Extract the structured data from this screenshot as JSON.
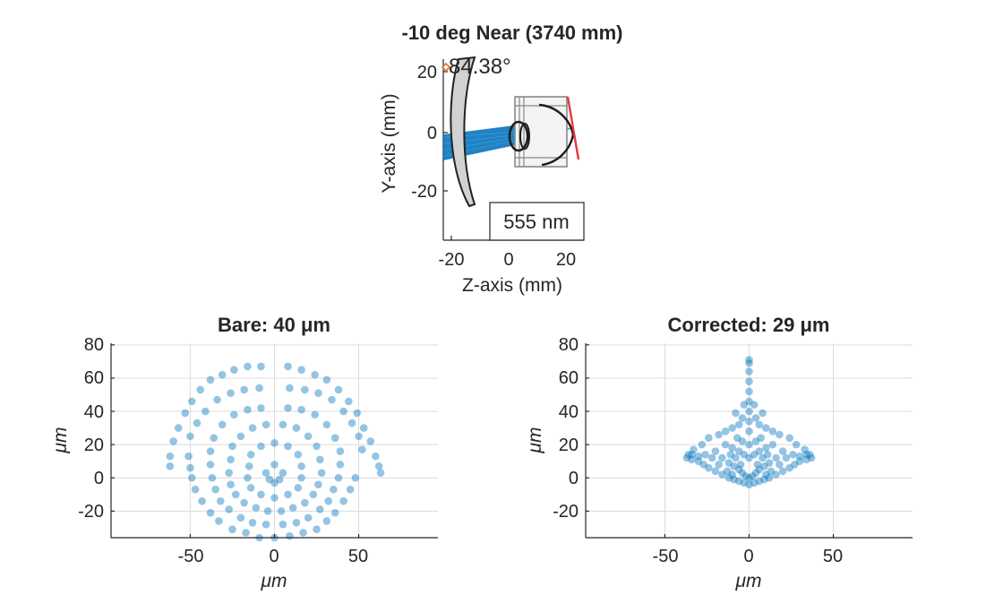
{
  "chart_data": [
    {
      "type": "diagram",
      "title": "-10 deg Near (3740 mm)",
      "xlabel": "Z-axis (mm)",
      "ylabel": "Y-axis (mm)",
      "xlim": [
        -22,
        26
      ],
      "ylim": [
        -36,
        30
      ],
      "xticks": [
        "-20",
        "0",
        "20"
      ],
      "yticks": [
        "20",
        "0",
        "-20"
      ],
      "angle_annotation": "84.38°",
      "wavelength_label": "555 nm",
      "ray_color": "#0072BD",
      "sensor_color": "#e8383d",
      "marker_color": "#e07b39"
    },
    {
      "type": "scatter",
      "title": "Bare: 40 μm",
      "xlabel": "μm",
      "ylabel": "μm",
      "xlim": [
        -97,
        97
      ],
      "ylim": [
        -36,
        81
      ],
      "xticks": [
        "-50",
        "0",
        "50"
      ],
      "yticks": [
        "80",
        "60",
        "40",
        "20",
        "0",
        "-20"
      ],
      "grid": true,
      "point_color": "#0072BD",
      "points": [
        [
          -62,
          13
        ],
        [
          -62,
          7
        ],
        [
          -60,
          22
        ],
        [
          -57,
          30
        ],
        [
          -53,
          39
        ],
        [
          -49,
          46
        ],
        [
          -44,
          53
        ],
        [
          -38,
          59
        ],
        [
          -31,
          62
        ],
        [
          -24,
          65
        ],
        [
          -16,
          67
        ],
        [
          -8,
          67
        ],
        [
          8,
          67
        ],
        [
          16,
          65
        ],
        [
          24,
          62
        ],
        [
          31,
          59
        ],
        [
          38,
          53
        ],
        [
          44,
          46
        ],
        [
          49,
          39
        ],
        [
          53,
          30
        ],
        [
          57,
          22
        ],
        [
          60,
          13
        ],
        [
          62,
          7
        ],
        [
          63,
          3
        ],
        [
          -50,
          25
        ],
        [
          -46,
          33
        ],
        [
          -41,
          40
        ],
        [
          -34,
          47
        ],
        [
          -26,
          51
        ],
        [
          -18,
          53
        ],
        [
          -9,
          54
        ],
        [
          9,
          54
        ],
        [
          18,
          53
        ],
        [
          26,
          51
        ],
        [
          34,
          47
        ],
        [
          41,
          40
        ],
        [
          46,
          33
        ],
        [
          50,
          25
        ],
        [
          52,
          17
        ],
        [
          -51,
          13
        ],
        [
          -50,
          6
        ],
        [
          -49,
          0
        ],
        [
          -47,
          -7
        ],
        [
          -43,
          -14
        ],
        [
          -38,
          -21
        ],
        [
          -33,
          -26
        ],
        [
          -25,
          -31
        ],
        [
          -17,
          -33
        ],
        [
          -9,
          -36
        ],
        [
          0,
          -36
        ],
        [
          9,
          -35
        ],
        [
          17,
          -33
        ],
        [
          25,
          -31
        ],
        [
          31,
          -26
        ],
        [
          36,
          -21
        ],
        [
          41,
          -14
        ],
        [
          45,
          -7
        ],
        [
          48,
          0
        ],
        [
          -38,
          16
        ],
        [
          -36,
          24
        ],
        [
          -31,
          32
        ],
        [
          -24,
          38
        ],
        [
          -16,
          41
        ],
        [
          -8,
          42
        ],
        [
          8,
          42
        ],
        [
          16,
          41
        ],
        [
          24,
          38
        ],
        [
          31,
          32
        ],
        [
          36,
          24
        ],
        [
          39,
          16
        ],
        [
          -38,
          8
        ],
        [
          -37,
          0
        ],
        [
          -35,
          -7
        ],
        [
          -32,
          -14
        ],
        [
          -27,
          -19
        ],
        [
          -20,
          -24
        ],
        [
          -13,
          -27
        ],
        [
          -5,
          -28
        ],
        [
          5,
          -28
        ],
        [
          13,
          -27
        ],
        [
          20,
          -24
        ],
        [
          27,
          -19
        ],
        [
          32,
          -14
        ],
        [
          35,
          -7
        ],
        [
          38,
          0
        ],
        [
          39,
          8
        ],
        [
          -26,
          11
        ],
        [
          -25,
          19
        ],
        [
          -20,
          25
        ],
        [
          -13,
          30
        ],
        [
          -5,
          32
        ],
        [
          5,
          32
        ],
        [
          13,
          30
        ],
        [
          20,
          25
        ],
        [
          25,
          19
        ],
        [
          27,
          11
        ],
        [
          -27,
          3
        ],
        [
          -26,
          -4
        ],
        [
          -23,
          -10
        ],
        [
          -18,
          -15
        ],
        [
          -11,
          -18
        ],
        [
          -4,
          -20
        ],
        [
          4,
          -20
        ],
        [
          11,
          -18
        ],
        [
          18,
          -15
        ],
        [
          23,
          -10
        ],
        [
          26,
          -4
        ],
        [
          28,
          3
        ],
        [
          -15,
          7
        ],
        [
          -14,
          14
        ],
        [
          -8,
          19
        ],
        [
          0,
          21
        ],
        [
          8,
          19
        ],
        [
          14,
          14
        ],
        [
          16,
          7
        ],
        [
          -16,
          0
        ],
        [
          -14,
          -6
        ],
        [
          -8,
          -10
        ],
        [
          0,
          -12
        ],
        [
          8,
          -10
        ],
        [
          14,
          -6
        ],
        [
          16,
          0
        ],
        [
          -5,
          3
        ],
        [
          0,
          8
        ],
        [
          5,
          3
        ],
        [
          0,
          -3
        ],
        [
          -3,
          -1
        ],
        [
          3,
          -1
        ]
      ]
    },
    {
      "type": "scatter",
      "title": "Corrected: 29 μm",
      "xlabel": "μm",
      "ylabel": "μm",
      "xlim": [
        -97,
        97
      ],
      "ylim": [
        -36,
        81
      ],
      "xticks": [
        "-50",
        "0",
        "50"
      ],
      "yticks": [
        "80",
        "60",
        "40",
        "20",
        "0",
        "-20"
      ],
      "grid": true,
      "point_color": "#0072BD",
      "points": [
        [
          0,
          71
        ],
        [
          0,
          69
        ],
        [
          0,
          64
        ],
        [
          0,
          58
        ],
        [
          0,
          52
        ],
        [
          0,
          46
        ],
        [
          0,
          40
        ],
        [
          -3,
          44
        ],
        [
          3,
          44
        ],
        [
          0,
          34
        ],
        [
          -4,
          36
        ],
        [
          4,
          36
        ],
        [
          -8,
          39
        ],
        [
          8,
          39
        ],
        [
          -6,
          32
        ],
        [
          6,
          32
        ],
        [
          -10,
          30
        ],
        [
          10,
          30
        ],
        [
          -14,
          28
        ],
        [
          14,
          28
        ],
        [
          -18,
          26
        ],
        [
          18,
          26
        ],
        [
          -24,
          24
        ],
        [
          24,
          24
        ],
        [
          -28,
          20
        ],
        [
          28,
          20
        ],
        [
          -33,
          17
        ],
        [
          33,
          17
        ],
        [
          -36,
          14
        ],
        [
          36,
          14
        ],
        [
          -37,
          12
        ],
        [
          37,
          12
        ],
        [
          -34,
          11
        ],
        [
          34,
          11
        ],
        [
          -30,
          10
        ],
        [
          30,
          10
        ],
        [
          -27,
          8
        ],
        [
          27,
          8
        ],
        [
          -24,
          6
        ],
        [
          24,
          6
        ],
        [
          -20,
          4
        ],
        [
          20,
          4
        ],
        [
          -16,
          2
        ],
        [
          16,
          2
        ],
        [
          -12,
          0
        ],
        [
          12,
          0
        ],
        [
          -9,
          -1
        ],
        [
          9,
          -1
        ],
        [
          -6,
          -2
        ],
        [
          6,
          -2
        ],
        [
          -3,
          -3
        ],
        [
          3,
          -3
        ],
        [
          0,
          -4
        ],
        [
          -20,
          16
        ],
        [
          20,
          16
        ],
        [
          -16,
          12
        ],
        [
          16,
          12
        ],
        [
          -12,
          9
        ],
        [
          12,
          9
        ],
        [
          -9,
          7
        ],
        [
          9,
          7
        ],
        [
          -6,
          5
        ],
        [
          6,
          5
        ],
        [
          -4,
          3
        ],
        [
          4,
          3
        ],
        [
          -2,
          1
        ],
        [
          2,
          1
        ],
        [
          0,
          0
        ],
        [
          -14,
          20
        ],
        [
          14,
          20
        ],
        [
          -10,
          18
        ],
        [
          10,
          18
        ],
        [
          -6,
          16
        ],
        [
          6,
          16
        ],
        [
          -3,
          14
        ],
        [
          3,
          14
        ],
        [
          0,
          12
        ],
        [
          -7,
          24
        ],
        [
          7,
          24
        ],
        [
          -4,
          22
        ],
        [
          4,
          22
        ],
        [
          0,
          20
        ],
        [
          0,
          28
        ],
        [
          -18,
          8
        ],
        [
          18,
          8
        ],
        [
          -22,
          12
        ],
        [
          22,
          12
        ],
        [
          -26,
          14
        ],
        [
          26,
          14
        ],
        [
          -30,
          13
        ],
        [
          30,
          13
        ],
        [
          -34,
          14
        ],
        [
          34,
          14
        ],
        [
          -13,
          4
        ],
        [
          13,
          4
        ],
        [
          -10,
          2
        ],
        [
          10,
          2
        ],
        [
          -5,
          8
        ],
        [
          5,
          8
        ],
        [
          -8,
          12
        ],
        [
          8,
          12
        ],
        [
          -11,
          14
        ],
        [
          11,
          14
        ]
      ]
    }
  ]
}
